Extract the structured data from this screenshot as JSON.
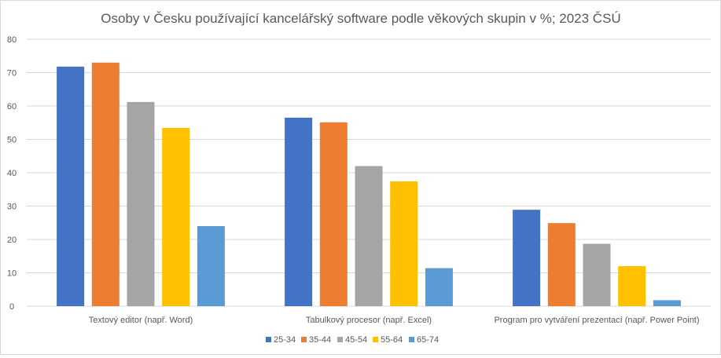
{
  "chart_data": {
    "type": "bar",
    "title": "Osoby v Česku používající kancelářský software podle věkových skupin v %; 2023 ČSÚ",
    "xlabel": "",
    "ylabel": "",
    "ylim": [
      0,
      80
    ],
    "yticks": [
      "0",
      "10",
      "20",
      "30",
      "40",
      "50",
      "60",
      "70",
      "80"
    ],
    "grid": true,
    "legend_position": "bottom",
    "categories": [
      "Textový editor (např. Word)",
      "Tabulkový procesor (např. Excel)",
      "Program pro vytváření prezentací (např. Power Point)"
    ],
    "series": [
      {
        "name": "25-34",
        "color": "#4472c4",
        "values": [
          71.8,
          56.5,
          28.9
        ]
      },
      {
        "name": "35-44",
        "color": "#ed7d31",
        "values": [
          73.0,
          55.1,
          24.9
        ]
      },
      {
        "name": "45-54",
        "color": "#a5a5a5",
        "values": [
          61.2,
          42.0,
          18.7
        ]
      },
      {
        "name": "55-64",
        "color": "#ffc000",
        "values": [
          53.4,
          37.4,
          12.0
        ]
      },
      {
        "name": "65-74",
        "color": "#5b9bd5",
        "values": [
          24.0,
          11.4,
          1.8
        ]
      }
    ]
  }
}
